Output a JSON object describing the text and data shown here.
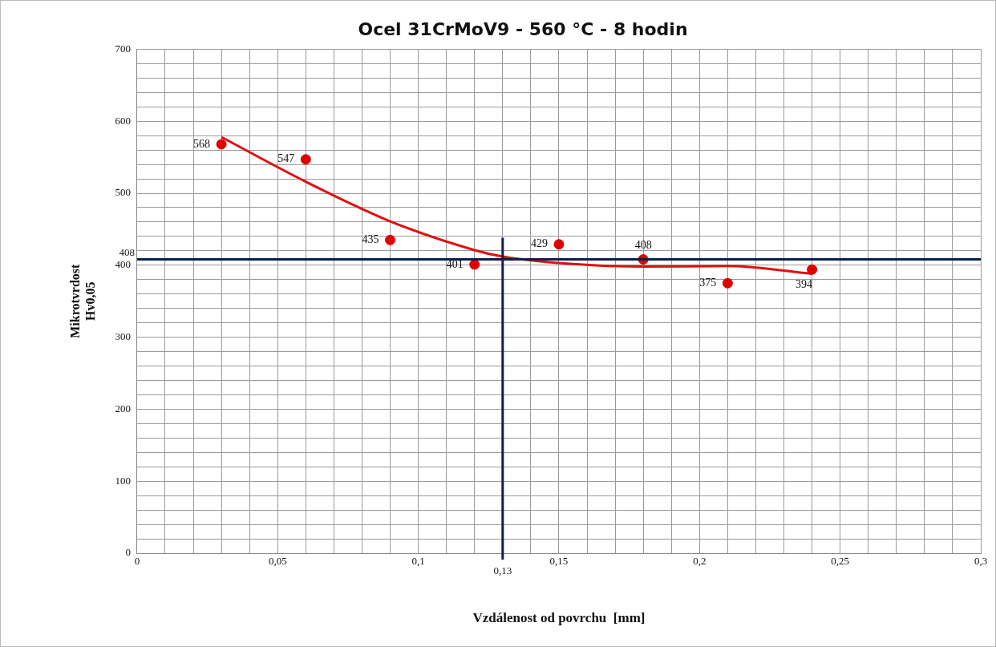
{
  "chart_data": {
    "type": "scatter",
    "title": "Ocel 31CrMoV9 - 560 °C - 8 hodin",
    "xlabel": "Vzdálenost od povrchu  [mm]",
    "ylabel": "Mikrotvrdost\nHv0,05",
    "series": [
      {
        "color": "#e00000",
        "x": [
          0.03,
          0.06,
          0.09,
          0.12,
          0.15,
          0.18,
          0.21,
          0.24
        ],
        "values": [
          568,
          547,
          435,
          401,
          429,
          408,
          375,
          394
        ],
        "marker": "circle",
        "data_labels": true
      },
      {
        "type": "line",
        "color": "#e01010",
        "x": [
          0.03,
          0.06,
          0.09,
          0.12,
          0.13,
          0.15,
          0.18,
          0.21,
          0.24
        ],
        "values": [
          578,
          516,
          461,
          421,
          412,
          403,
          398,
          399,
          388
        ],
        "marker": "none"
      }
    ],
    "xlim": [
      0,
      0.3
    ],
    "ylim": [
      0,
      700
    ],
    "xticks": [
      0,
      {
        "value": 0.01,
        "label": null
      },
      {
        "value": 0.02,
        "label": null
      },
      {
        "value": 0.03,
        "label": null
      },
      {
        "value": 0.04,
        "label": null
      },
      {
        "value": 0.05,
        "label": "0,05"
      },
      {
        "value": 0.06,
        "label": null
      },
      {
        "value": 0.07,
        "label": null
      },
      {
        "value": 0.08,
        "label": null
      },
      {
        "value": 0.09,
        "label": null
      },
      {
        "value": 0.1,
        "label": "0,1"
      },
      {
        "value": 0.11,
        "label": null
      },
      {
        "value": 0.12,
        "label": null
      },
      {
        "value": 0.13,
        "label": null
      },
      {
        "value": 0.14,
        "label": null
      },
      {
        "value": 0.15,
        "label": "0,15"
      },
      {
        "value": 0.16,
        "label": null
      },
      {
        "value": 0.17,
        "label": null
      },
      {
        "value": 0.18,
        "label": null
      },
      {
        "value": 0.19,
        "label": null
      },
      {
        "value": 0.2,
        "label": "0,2"
      },
      {
        "value": 0.21,
        "label": null
      },
      {
        "value": 0.22,
        "label": null
      },
      {
        "value": 0.23,
        "label": null
      },
      {
        "value": 0.24,
        "label": null
      },
      {
        "value": 0.25,
        "label": "0,25"
      },
      {
        "value": 0.26,
        "label": null
      },
      {
        "value": 0.27,
        "label": null
      },
      {
        "value": 0.28,
        "label": null
      },
      {
        "value": 0.29,
        "label": null
      },
      {
        "value": 0.3,
        "label": "0,3"
      }
    ],
    "yticks": [
      0,
      {
        "value": 20,
        "label": null
      },
      {
        "value": 40,
        "label": null
      },
      {
        "value": 60,
        "label": null
      },
      {
        "value": 80,
        "label": null
      },
      100,
      {
        "value": 120,
        "label": null
      },
      {
        "value": 140,
        "label": null
      },
      {
        "value": 160,
        "label": null
      },
      {
        "value": 180,
        "label": null
      },
      200,
      {
        "value": 220,
        "label": null
      },
      {
        "value": 240,
        "label": null
      },
      {
        "value": 260,
        "label": null
      },
      {
        "value": 280,
        "label": null
      },
      300,
      {
        "value": 320,
        "label": null
      },
      {
        "value": 340,
        "label": null
      },
      {
        "value": 360,
        "label": null
      },
      {
        "value": 380,
        "label": null
      },
      400,
      {
        "value": 420,
        "label": null
      },
      {
        "value": 440,
        "label": null
      },
      {
        "value": 460,
        "label": null
      },
      {
        "value": 480,
        "label": null
      },
      500,
      {
        "value": 520,
        "label": null
      },
      {
        "value": 540,
        "label": null
      },
      {
        "value": 560,
        "label": null
      },
      {
        "value": 580,
        "label": null
      },
      600,
      {
        "value": 620,
        "label": null
      },
      {
        "value": 640,
        "label": null
      },
      {
        "value": 660,
        "label": null
      },
      {
        "value": 680,
        "label": null
      },
      700
    ],
    "ref_lines": [
      {
        "axis": "y",
        "value": 408,
        "label": "408",
        "color": "#0d1f4f"
      },
      {
        "axis": "x",
        "value": 0.13,
        "label": "0,13",
        "color": "#0d1f4f"
      }
    ],
    "grid": true,
    "legend": false
  }
}
